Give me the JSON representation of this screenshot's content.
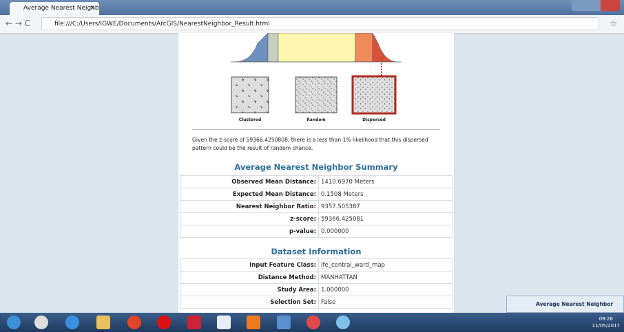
{
  "browser": {
    "tab_title": "Average Nearest Neighb",
    "address": "file:///C:/Users/IGWE/Documents/ArcGIS/NearestNeighbor_Result.html"
  },
  "graphic": {
    "labels": [
      "Clustered",
      "Random",
      "Dispersed"
    ]
  },
  "description": "Given the z-score of 59366.4250808, there is a less than 1% likelihood that this dispersed pattern could be the result of random chance.",
  "summary": {
    "title": "Average Nearest Neighbor Summary",
    "rows": [
      [
        "Observed Mean Distance:",
        "1410.6970 Meters"
      ],
      [
        "Expected Mean Distance:",
        "0.1508 Meters"
      ],
      [
        "Nearest Neighbor Ratio:",
        "9357.505387"
      ],
      [
        "z-score:",
        "59366.425081"
      ],
      [
        "p-value:",
        "0.000000"
      ]
    ]
  },
  "dataset": {
    "title": "Dataset Information",
    "rows": [
      [
        "Input Feature Class:",
        "Ife_central_ward_map"
      ],
      [
        "Distance Method:",
        "MANHATTAN"
      ],
      [
        "Study Area:",
        "1.000000"
      ],
      [
        "Selection Set:",
        "False"
      ]
    ]
  },
  "notification": "Average Nearest Neighbor",
  "clock": {
    "time": "09:26",
    "date": "11/05/2017"
  }
}
